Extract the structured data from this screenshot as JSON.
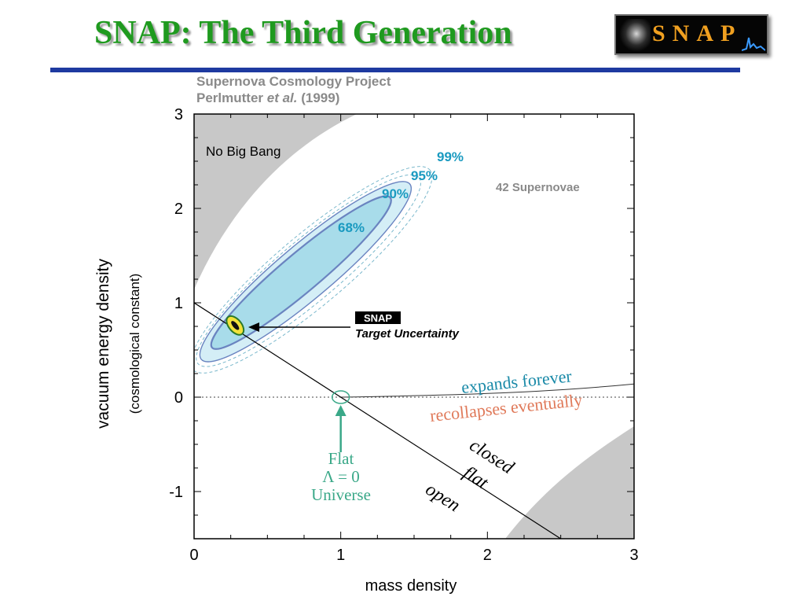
{
  "slide": {
    "title": "SNAP: The Third Generation",
    "logo_text": "SNAP"
  },
  "credit": {
    "line1": "Supernova Cosmology Project",
    "line2_name": "Perlmutter ",
    "line2_etal": "et al.",
    "line2_year": " (1999)"
  },
  "colors": {
    "title_green": "#1f9a1f",
    "rule_blue": "#1e3aa0",
    "contour_fill_inner": "#a8dcea",
    "contour_fill_outer": "#d4eef6",
    "contour_line": "#6a84c0",
    "percent_label": "#1a9ac0",
    "expands_teal": "#1a8aa8",
    "recollapses_orange": "#e07a5a",
    "flat_green": "#3aa888",
    "excluded_gray": "#c8c8c8"
  },
  "chart_data": {
    "type": "scatter",
    "xlabel": "mass density",
    "ylabel": "vacuum energy density",
    "ylabel_sub": "(cosmological constant)",
    "xlim": [
      0,
      3
    ],
    "ylim": [
      -1.5,
      3
    ],
    "xticks": [
      "0",
      "1",
      "2",
      "3"
    ],
    "yticks": [
      "3",
      "2",
      "1",
      "0",
      "-1"
    ],
    "annotations": {
      "no_big_bang": "No Big Bang",
      "sample": "42 Supernovae",
      "snap_badge": "SNAP",
      "snap_target": "Target Uncertainty",
      "expands": "expands forever",
      "recollapses": "recollapses eventually",
      "flat_line1": "Flat",
      "flat_line2": "Λ = 0",
      "flat_line3": "Universe",
      "closed": "closed",
      "flat": "flat",
      "open": "open"
    },
    "contours": [
      {
        "label": "68%",
        "center": [
          0.73,
          1.32
        ],
        "half_length": 1.0,
        "half_width": 0.165
      },
      {
        "label": "90%",
        "center": [
          0.76,
          1.33
        ],
        "half_length": 1.17,
        "half_width": 0.232
      },
      {
        "label": "95%",
        "center": [
          0.78,
          1.34
        ],
        "half_length": 1.24,
        "half_width": 0.262
      },
      {
        "label": "99%",
        "center": [
          0.8,
          1.35
        ],
        "half_length": 1.33,
        "half_width": 0.302
      }
    ],
    "snap_point": {
      "x": 0.28,
      "y": 0.76
    },
    "flat_universe_point": {
      "x": 1.0,
      "y": 0.0
    },
    "flat_line": [
      [
        0,
        1
      ],
      [
        2.5,
        -1.5
      ]
    ]
  }
}
